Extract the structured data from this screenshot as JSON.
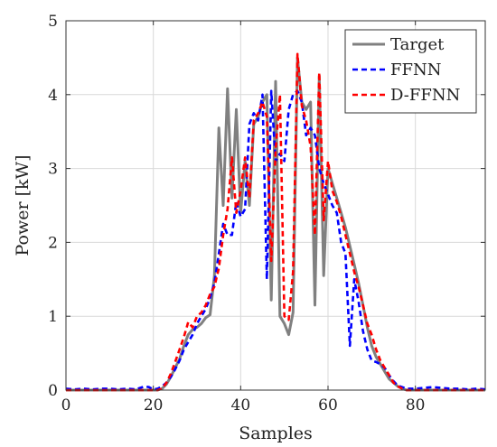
{
  "chart_data": {
    "type": "line",
    "title": "",
    "xlabel": "Samples",
    "ylabel": "Power [kW]",
    "xlim": [
      0,
      96
    ],
    "ylim": [
      0,
      5
    ],
    "xticks": [
      0,
      20,
      40,
      60,
      80
    ],
    "yticks": [
      0,
      1,
      2,
      3,
      4,
      5
    ],
    "grid": true,
    "legend_position": "top-right",
    "series": [
      {
        "name": "Target",
        "color": "#808080",
        "style": "solid",
        "x": [
          0,
          2,
          4,
          6,
          8,
          10,
          12,
          14,
          16,
          18,
          20,
          21,
          22,
          23,
          24,
          25,
          26,
          27,
          28,
          29,
          30,
          31,
          32,
          33,
          34,
          35,
          36,
          37,
          38,
          39,
          40,
          41,
          42,
          43,
          44,
          45,
          46,
          47,
          48,
          49,
          50,
          51,
          52,
          53,
          54,
          55,
          56,
          57,
          58,
          59,
          60,
          61,
          62,
          63,
          64,
          65,
          66,
          67,
          68,
          69,
          70,
          71,
          72,
          73,
          74,
          75,
          76,
          77,
          78,
          80,
          82,
          84,
          86,
          88,
          90,
          92,
          94,
          96
        ],
        "y": [
          0,
          0,
          0,
          0,
          0,
          0,
          0,
          0,
          0,
          0,
          0,
          0,
          0.02,
          0.08,
          0.18,
          0.3,
          0.42,
          0.6,
          0.75,
          0.82,
          0.85,
          0.9,
          0.98,
          1.02,
          1.55,
          3.55,
          2.5,
          4.08,
          2.6,
          3.8,
          2.4,
          3.1,
          2.5,
          3.6,
          3.7,
          3.9,
          4.0,
          1.22,
          4.18,
          1.0,
          0.9,
          0.75,
          1.05,
          4.5,
          3.9,
          3.8,
          3.9,
          1.15,
          4.25,
          1.55,
          3.0,
          2.8,
          2.6,
          2.4,
          2.2,
          1.95,
          1.7,
          1.45,
          1.15,
          0.85,
          0.6,
          0.45,
          0.35,
          0.25,
          0.15,
          0.1,
          0.05,
          0.02,
          0,
          0,
          0,
          0,
          0,
          0,
          0,
          0,
          0,
          0
        ]
      },
      {
        "name": "FFNN",
        "color": "#0000ff",
        "style": "dashed",
        "x": [
          0,
          2,
          4,
          6,
          8,
          10,
          12,
          14,
          16,
          18,
          19,
          20,
          21,
          22,
          23,
          24,
          25,
          26,
          27,
          28,
          29,
          30,
          31,
          32,
          33,
          34,
          35,
          36,
          37,
          38,
          39,
          40,
          41,
          42,
          43,
          44,
          45,
          46,
          47,
          48,
          49,
          50,
          51,
          52,
          53,
          54,
          55,
          56,
          57,
          58,
          59,
          60,
          61,
          62,
          63,
          64,
          65,
          66,
          67,
          68,
          69,
          70,
          71,
          72,
          73,
          74,
          75,
          76,
          77,
          78,
          80,
          82,
          84,
          86,
          88,
          90,
          92,
          94,
          96
        ],
        "y": [
          0.02,
          0.01,
          0.02,
          0.01,
          0.02,
          0.02,
          0.01,
          0.02,
          0.01,
          0.05,
          0.04,
          0.01,
          0.02,
          0.05,
          0.1,
          0.18,
          0.28,
          0.4,
          0.55,
          0.65,
          0.75,
          0.9,
          1.0,
          1.1,
          1.25,
          1.45,
          1.85,
          2.25,
          2.1,
          2.1,
          2.55,
          2.35,
          2.45,
          3.6,
          3.75,
          3.65,
          4.0,
          1.5,
          4.05,
          3.1,
          3.2,
          3.1,
          3.8,
          4.0,
          4.05,
          3.9,
          3.45,
          3.55,
          3.45,
          3.0,
          2.8,
          2.65,
          2.5,
          2.4,
          2.0,
          1.85,
          0.6,
          1.5,
          1.2,
          0.8,
          0.55,
          0.4,
          0.38,
          0.35,
          0.3,
          0.2,
          0.12,
          0.06,
          0.04,
          0.02,
          0.02,
          0.03,
          0.04,
          0.03,
          0.02,
          0.02,
          0.01,
          0.02,
          0.01
        ]
      },
      {
        "name": "D-FFNN",
        "color": "#ff0000",
        "style": "dashed",
        "x": [
          0,
          2,
          4,
          6,
          8,
          10,
          12,
          14,
          16,
          18,
          20,
          21,
          22,
          23,
          24,
          25,
          26,
          27,
          28,
          29,
          30,
          31,
          32,
          33,
          34,
          35,
          36,
          37,
          38,
          39,
          40,
          41,
          42,
          43,
          44,
          45,
          46,
          47,
          48,
          49,
          50,
          51,
          52,
          53,
          54,
          55,
          56,
          57,
          58,
          59,
          60,
          61,
          62,
          63,
          64,
          65,
          66,
          67,
          68,
          69,
          70,
          71,
          72,
          73,
          74,
          75,
          76,
          77,
          78,
          80,
          82,
          84,
          86,
          88,
          90,
          92,
          94,
          96
        ],
        "y": [
          0,
          0,
          0,
          0,
          0,
          0,
          0,
          0,
          0,
          0,
          0,
          0,
          0.02,
          0.1,
          0.22,
          0.38,
          0.55,
          0.72,
          0.92,
          0.85,
          1.0,
          1.05,
          1.15,
          1.3,
          1.4,
          1.65,
          2.1,
          2.45,
          3.15,
          2.4,
          2.7,
          3.15,
          2.6,
          3.65,
          3.75,
          3.9,
          3.7,
          1.75,
          3.25,
          4.0,
          1.0,
          0.95,
          1.6,
          4.55,
          3.85,
          3.65,
          3.3,
          2.1,
          4.3,
          2.3,
          3.1,
          2.7,
          2.55,
          2.35,
          2.1,
          1.85,
          1.6,
          1.4,
          1.15,
          0.9,
          0.75,
          0.55,
          0.4,
          0.3,
          0.2,
          0.1,
          0.05,
          0.02,
          0,
          0,
          0,
          0,
          0,
          0,
          0,
          0,
          0,
          0
        ]
      }
    ]
  }
}
